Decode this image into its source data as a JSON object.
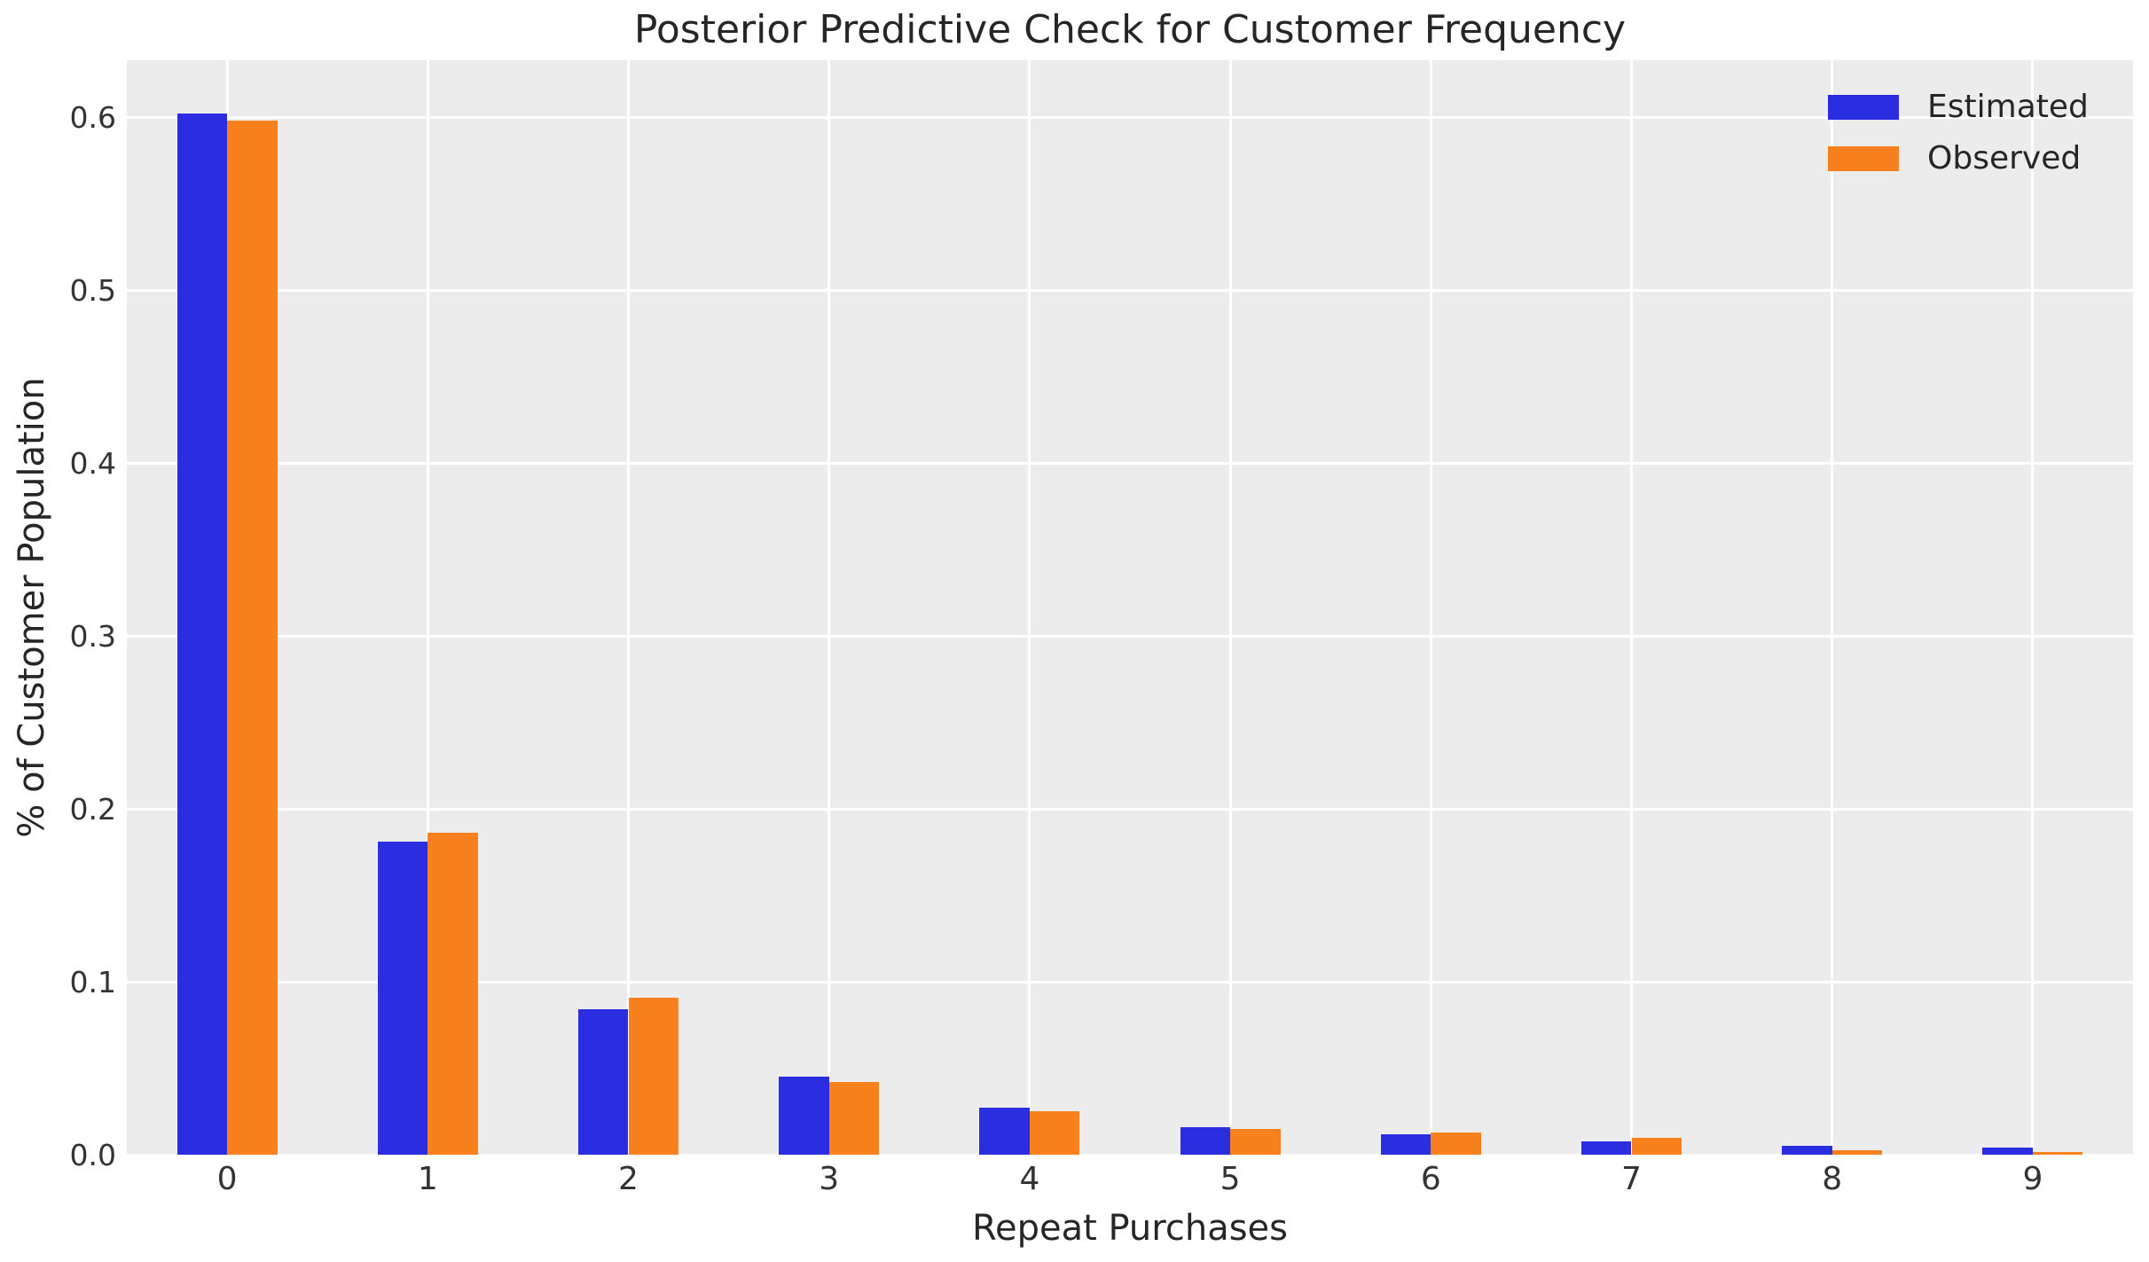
{
  "figure": {
    "background": "#ffffff",
    "plot_background": "#ececec",
    "grid_color": "#ffffff",
    "title_color": "#262626",
    "tick_color": "#333333"
  },
  "chart_data": {
    "type": "bar",
    "title": "Posterior Predictive Check for Customer Frequency",
    "xlabel": "Repeat Purchases",
    "ylabel": "% of Customer Population",
    "categories": [
      "0",
      "1",
      "2",
      "3",
      "4",
      "5",
      "6",
      "7",
      "8",
      "9"
    ],
    "series": [
      {
        "name": "Estimated",
        "color": "#2b2ee0",
        "values": [
          0.602,
          0.181,
          0.084,
          0.045,
          0.027,
          0.016,
          0.012,
          0.0075,
          0.005,
          0.004
        ]
      },
      {
        "name": "Observed",
        "color": "#f8811d",
        "values": [
          0.598,
          0.186,
          0.091,
          0.042,
          0.025,
          0.015,
          0.013,
          0.0095,
          0.0025,
          0.0015
        ]
      }
    ],
    "ylim": [
      0,
      0.633
    ],
    "yticks": [
      0.0,
      0.1,
      0.2,
      0.3,
      0.4,
      0.5,
      0.6
    ],
    "ytick_labels": [
      "0.0",
      "0.1",
      "0.2",
      "0.3",
      "0.4",
      "0.5",
      "0.6"
    ],
    "grid": true,
    "legend_position": "upper right",
    "legend_labels": [
      "Estimated",
      "Observed"
    ]
  }
}
